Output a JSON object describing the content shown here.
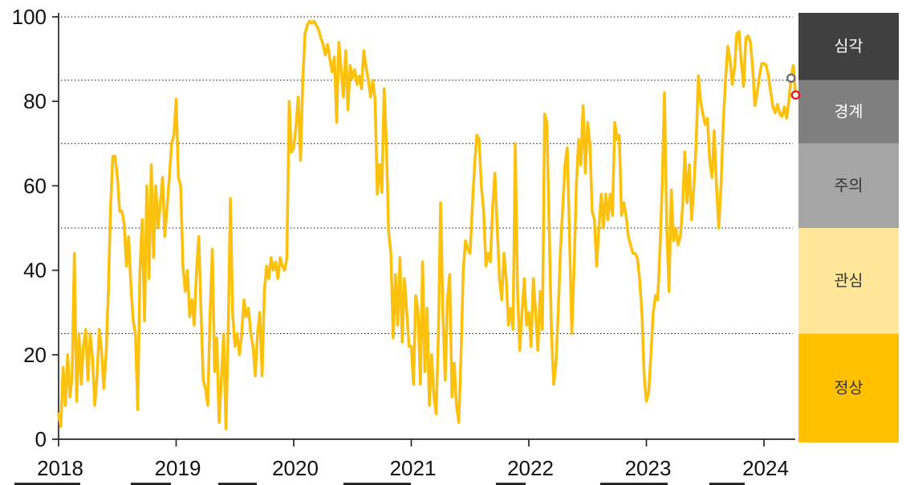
{
  "chart_data": {
    "type": "line",
    "title": "",
    "xlabel": "",
    "ylabel": "",
    "ylim": [
      0,
      100
    ],
    "y_ticks": [
      "0",
      "20",
      "40",
      "60",
      "80",
      "100"
    ],
    "y_tick_values": [
      0,
      20,
      40,
      60,
      80,
      100
    ],
    "x_tick_labels": [
      "2018",
      "2019",
      "2020",
      "2021",
      "2022",
      "2023",
      "2024"
    ],
    "gridline_values": [
      100,
      85,
      70,
      50,
      25
    ],
    "grid_style": "dotted",
    "line_color": "#FCC10E",
    "points_per_year": 52,
    "x_start_year": 2018,
    "values": [
      6,
      3,
      17,
      8,
      20,
      10,
      15,
      44,
      9,
      25,
      13,
      22,
      26,
      14,
      25,
      19,
      8,
      15,
      26,
      21,
      12,
      20,
      35,
      55,
      67,
      67,
      62,
      54,
      54,
      51,
      41,
      48,
      36,
      28,
      25,
      7,
      40,
      52,
      28,
      60,
      38,
      65,
      43,
      60,
      50,
      56,
      62,
      48,
      55,
      62,
      70,
      72,
      80.5,
      62,
      60,
      41,
      35,
      40,
      29,
      33,
      27,
      40,
      48,
      30,
      14,
      12,
      8,
      30,
      45,
      16,
      24,
      4,
      14,
      25,
      2.5,
      25,
      57,
      30,
      22,
      25,
      20,
      25,
      33,
      29,
      31,
      25,
      22,
      15,
      25,
      30,
      15,
      35,
      41,
      38,
      43,
      40,
      42,
      38,
      43,
      41,
      40,
      43,
      80,
      68,
      69,
      74,
      81,
      66,
      85,
      96,
      98,
      99,
      98.5,
      99,
      98,
      97,
      95,
      93.5,
      91,
      93.5,
      90,
      87,
      90.5,
      75,
      94,
      87,
      81,
      92,
      78,
      88.5,
      85.5,
      87.5,
      84,
      86,
      83,
      92,
      88,
      85,
      81,
      85,
      80.5,
      58,
      65,
      58.5,
      83,
      70,
      49,
      44,
      24,
      39,
      27,
      43,
      23,
      38,
      30,
      22,
      22,
      13,
      34,
      30,
      13,
      42,
      16,
      31,
      8,
      20,
      10,
      6,
      25,
      56,
      30,
      14,
      33,
      39,
      10,
      18,
      8,
      4,
      20,
      40,
      47,
      45,
      44,
      55,
      65,
      72,
      71,
      60,
      54,
      41,
      44,
      42,
      55,
      63,
      50,
      38,
      33,
      44,
      38,
      27,
      31,
      26,
      70,
      35,
      21,
      30,
      38,
      27,
      30,
      22,
      38,
      30,
      21,
      35,
      26,
      77,
      75,
      50,
      25,
      13,
      18,
      30,
      45,
      55,
      65,
      69,
      48,
      25,
      40,
      60,
      71,
      65,
      79,
      63,
      75,
      70,
      54,
      52,
      41,
      50,
      58,
      50,
      58,
      52,
      58,
      53,
      75,
      71,
      72,
      53,
      56,
      53,
      48,
      46,
      44,
      44,
      43,
      38,
      30,
      15,
      9,
      11,
      20,
      30,
      34,
      33,
      45,
      60,
      82,
      50,
      35,
      59,
      47,
      50,
      46,
      48,
      55,
      68,
      56,
      65,
      52,
      60,
      70,
      86,
      80,
      77,
      74.5,
      76,
      66,
      62,
      73,
      60,
      50,
      60,
      75,
      85,
      93,
      90,
      84,
      88,
      96,
      96.5,
      89,
      83.5,
      95,
      95.5,
      94,
      88,
      79,
      82,
      86,
      89,
      89,
      88.5,
      86,
      82,
      78.5,
      77.3,
      79.3,
      77,
      76.4,
      78.7,
      76,
      80,
      85.5,
      88.5,
      81.5
    ],
    "zones": [
      {
        "label": "심각",
        "from": 85,
        "to": 100,
        "color": "#404040",
        "text_color": "#ffffff"
      },
      {
        "label": "경계",
        "from": 70,
        "to": 85,
        "color": "#7F7F7F",
        "text_color": "#ffffff"
      },
      {
        "label": "주의",
        "from": 50,
        "to": 70,
        "color": "#A6A6A6",
        "text_color": "#333333"
      },
      {
        "label": "관심",
        "from": 25,
        "to": 50,
        "color": "#FFE699",
        "text_color": "#333333"
      },
      {
        "label": "정상",
        "from": 0,
        "to": 25,
        "color": "#FFC000",
        "text_color": "#333333"
      }
    ],
    "end_markers": [
      {
        "color": "#707070",
        "index": 324,
        "value": 85.5
      },
      {
        "color": "#DB1F1F",
        "index": 326,
        "value": 81.5
      }
    ],
    "legend_position": "right-band"
  }
}
